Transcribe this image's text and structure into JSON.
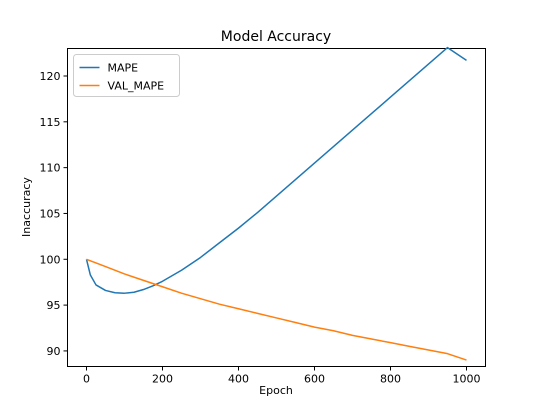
{
  "chart_data": {
    "type": "line",
    "title": "Model Accuracy",
    "xlabel": "Epoch",
    "ylabel": "Inaccuracy",
    "xlim": [
      -50,
      1050
    ],
    "ylim": [
      88.3,
      123.0
    ],
    "xticks": [
      0,
      200,
      400,
      600,
      800,
      1000
    ],
    "yticks": [
      90,
      95,
      100,
      105,
      110,
      115,
      120
    ],
    "grid": false,
    "legend_position": "top-left",
    "series": [
      {
        "name": "MAPE",
        "color": "#1f77b4",
        "x": [
          0,
          10,
          25,
          50,
          75,
          100,
          125,
          150,
          175,
          200,
          250,
          300,
          350,
          400,
          450,
          500,
          550,
          600,
          650,
          700,
          750,
          800,
          850,
          900,
          950,
          1000
        ],
        "y": [
          100.0,
          98.3,
          97.2,
          96.6,
          96.35,
          96.3,
          96.4,
          96.7,
          97.1,
          97.6,
          98.8,
          100.2,
          101.8,
          103.4,
          105.1,
          106.9,
          108.7,
          110.5,
          112.3,
          114.1,
          115.9,
          117.7,
          119.5,
          121.3,
          123.1,
          121.7
        ]
      },
      {
        "name": "VAL_MAPE",
        "color": "#ff7f0e",
        "x": [
          0,
          50,
          100,
          150,
          200,
          250,
          300,
          350,
          400,
          450,
          500,
          550,
          600,
          650,
          700,
          750,
          800,
          850,
          900,
          950,
          1000
        ],
        "y": [
          100.0,
          99.2,
          98.4,
          97.7,
          97.0,
          96.3,
          95.7,
          95.1,
          94.6,
          94.1,
          93.6,
          93.1,
          92.6,
          92.2,
          91.7,
          91.3,
          90.9,
          90.5,
          90.1,
          89.7,
          89.0
        ]
      }
    ]
  }
}
